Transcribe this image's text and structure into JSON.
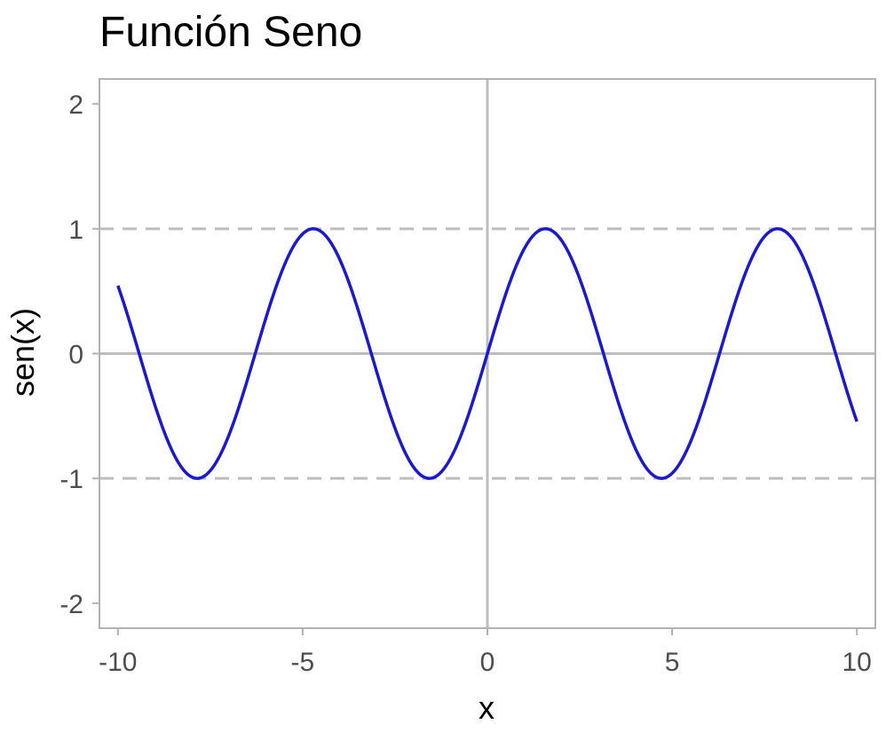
{
  "chart_data": {
    "type": "line",
    "title": "Función Seno",
    "xlabel": "x",
    "ylabel": "sen(x)",
    "xlim": [
      -10.5,
      10.5
    ],
    "ylim": [
      -2.2,
      2.2
    ],
    "x_ticks": [
      -10,
      -5,
      0,
      5,
      10
    ],
    "x_tick_labels": [
      "-10",
      "-5",
      "0",
      "5",
      "10"
    ],
    "y_ticks": [
      -2,
      -1,
      0,
      1,
      2
    ],
    "y_tick_labels": [
      "-2",
      "-1",
      "0",
      "1",
      "2"
    ],
    "grid": false,
    "reference_lines": {
      "horizontal_dashed": [
        -1,
        1
      ],
      "horizontal_solid": [
        0
      ],
      "vertical_solid": [
        0
      ]
    },
    "series": [
      {
        "function": "sin(x)",
        "x_range": [
          -10,
          10
        ],
        "color": "#1a1acc"
      }
    ],
    "colors": {
      "line": "#1a1acc",
      "reference": "#bdbdbd",
      "frame": "#b3b3b3",
      "tick_text": "#4d4d4d"
    }
  }
}
